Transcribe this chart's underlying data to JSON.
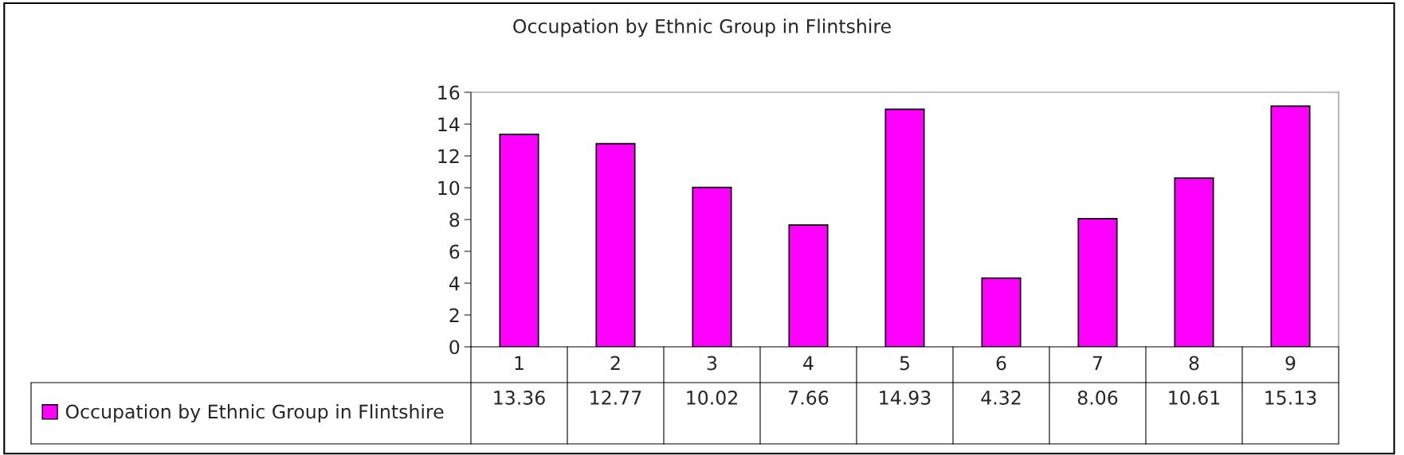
{
  "chart_data": {
    "type": "bar",
    "title": "Occupation by Ethnic Group in Flintshire",
    "categories": [
      "1",
      "2",
      "3",
      "4",
      "5",
      "6",
      "7",
      "8",
      "9"
    ],
    "series": [
      {
        "name": "Occupation by Ethnic Group in Flintshire",
        "color": "#ff00ff",
        "values": [
          13.36,
          12.77,
          10.02,
          7.66,
          14.93,
          4.32,
          8.06,
          10.61,
          15.13
        ]
      }
    ],
    "ylim": [
      0,
      16
    ],
    "yticks": [
      0,
      2,
      4,
      6,
      8,
      10,
      12,
      14,
      16
    ],
    "grid": false,
    "legend": "bottom left",
    "data_labels": true
  }
}
